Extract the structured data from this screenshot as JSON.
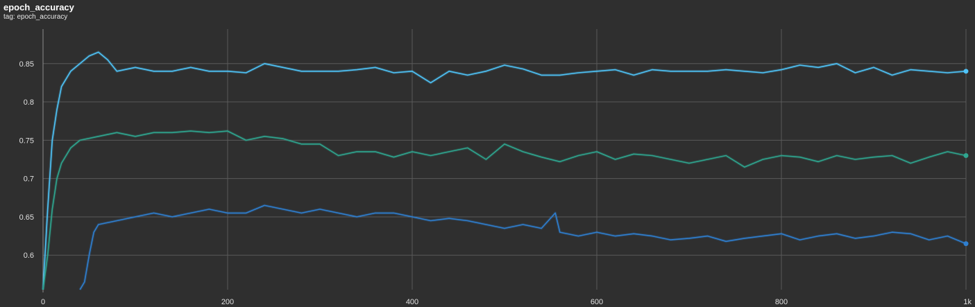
{
  "header": {
    "title": "epoch_accuracy",
    "tag_label": "tag: epoch_accuracy"
  },
  "chart_data": {
    "type": "line",
    "title": "epoch_accuracy",
    "subtitle": "tag: epoch_accuracy",
    "xlabel": "",
    "ylabel": "",
    "xlim": [
      0,
      1000
    ],
    "ylim": [
      0.555,
      0.895
    ],
    "x_ticks": [
      {
        "value": 0,
        "label": "0"
      },
      {
        "value": 200,
        "label": "200"
      },
      {
        "value": 400,
        "label": "400"
      },
      {
        "value": 600,
        "label": "600"
      },
      {
        "value": 800,
        "label": "800"
      },
      {
        "value": 1000,
        "label": "1k"
      }
    ],
    "y_ticks": [
      {
        "value": 0.6,
        "label": "0.6"
      },
      {
        "value": 0.65,
        "label": "0.65"
      },
      {
        "value": 0.7,
        "label": "0.7"
      },
      {
        "value": 0.75,
        "label": "0.75"
      },
      {
        "value": 0.8,
        "label": "0.8"
      },
      {
        "value": 0.85,
        "label": "0.85"
      }
    ],
    "grid": true,
    "series": [
      {
        "color": "#4fc3f7",
        "x": [
          0,
          5,
          10,
          15,
          20,
          30,
          40,
          50,
          60,
          70,
          80,
          100,
          120,
          140,
          160,
          180,
          200,
          220,
          240,
          260,
          280,
          300,
          320,
          340,
          360,
          380,
          400,
          420,
          440,
          460,
          480,
          500,
          520,
          540,
          560,
          580,
          600,
          620,
          640,
          660,
          680,
          700,
          720,
          740,
          760,
          780,
          800,
          820,
          840,
          860,
          880,
          900,
          920,
          940,
          960,
          980,
          1000
        ],
        "values": [
          0.55,
          0.66,
          0.75,
          0.79,
          0.82,
          0.84,
          0.85,
          0.86,
          0.865,
          0.855,
          0.84,
          0.845,
          0.84,
          0.84,
          0.845,
          0.84,
          0.84,
          0.838,
          0.85,
          0.845,
          0.84,
          0.84,
          0.84,
          0.842,
          0.845,
          0.838,
          0.84,
          0.825,
          0.84,
          0.835,
          0.84,
          0.848,
          0.843,
          0.835,
          0.835,
          0.838,
          0.84,
          0.842,
          0.835,
          0.842,
          0.84,
          0.84,
          0.84,
          0.842,
          0.84,
          0.838,
          0.842,
          0.848,
          0.845,
          0.85,
          0.838,
          0.845,
          0.835,
          0.842,
          0.84,
          0.838,
          0.84
        ]
      },
      {
        "color": "#2fa58f",
        "x": [
          0,
          5,
          10,
          15,
          20,
          30,
          40,
          60,
          80,
          100,
          120,
          140,
          160,
          180,
          200,
          220,
          240,
          260,
          280,
          300,
          320,
          340,
          360,
          380,
          400,
          420,
          440,
          460,
          480,
          500,
          520,
          540,
          560,
          580,
          600,
          620,
          640,
          660,
          680,
          700,
          720,
          740,
          760,
          780,
          800,
          820,
          840,
          860,
          880,
          900,
          920,
          940,
          960,
          980,
          1000
        ],
        "values": [
          0.55,
          0.6,
          0.66,
          0.7,
          0.72,
          0.74,
          0.75,
          0.755,
          0.76,
          0.755,
          0.76,
          0.76,
          0.762,
          0.76,
          0.762,
          0.75,
          0.755,
          0.752,
          0.745,
          0.745,
          0.73,
          0.735,
          0.735,
          0.728,
          0.735,
          0.73,
          0.735,
          0.74,
          0.725,
          0.745,
          0.735,
          0.728,
          0.722,
          0.73,
          0.735,
          0.725,
          0.732,
          0.73,
          0.725,
          0.72,
          0.725,
          0.73,
          0.715,
          0.725,
          0.73,
          0.728,
          0.722,
          0.73,
          0.725,
          0.728,
          0.73,
          0.72,
          0.728,
          0.735,
          0.73
        ]
      },
      {
        "color": "#2f7fd0",
        "x": [
          40,
          45,
          50,
          55,
          60,
          80,
          100,
          120,
          140,
          160,
          180,
          200,
          220,
          240,
          260,
          280,
          300,
          320,
          340,
          360,
          380,
          400,
          420,
          440,
          460,
          480,
          500,
          520,
          540,
          555,
          560,
          580,
          600,
          620,
          640,
          660,
          680,
          700,
          720,
          740,
          760,
          780,
          800,
          820,
          840,
          860,
          880,
          900,
          920,
          940,
          960,
          980,
          1000
        ],
        "values": [
          0.55,
          0.565,
          0.6,
          0.63,
          0.64,
          0.645,
          0.65,
          0.655,
          0.65,
          0.655,
          0.66,
          0.655,
          0.655,
          0.665,
          0.66,
          0.655,
          0.66,
          0.655,
          0.65,
          0.655,
          0.655,
          0.65,
          0.645,
          0.648,
          0.645,
          0.64,
          0.635,
          0.64,
          0.635,
          0.655,
          0.63,
          0.625,
          0.63,
          0.625,
          0.628,
          0.625,
          0.62,
          0.622,
          0.625,
          0.618,
          0.622,
          0.625,
          0.628,
          0.62,
          0.625,
          0.628,
          0.622,
          0.625,
          0.63,
          0.628,
          0.62,
          0.625,
          0.615
        ]
      }
    ]
  }
}
